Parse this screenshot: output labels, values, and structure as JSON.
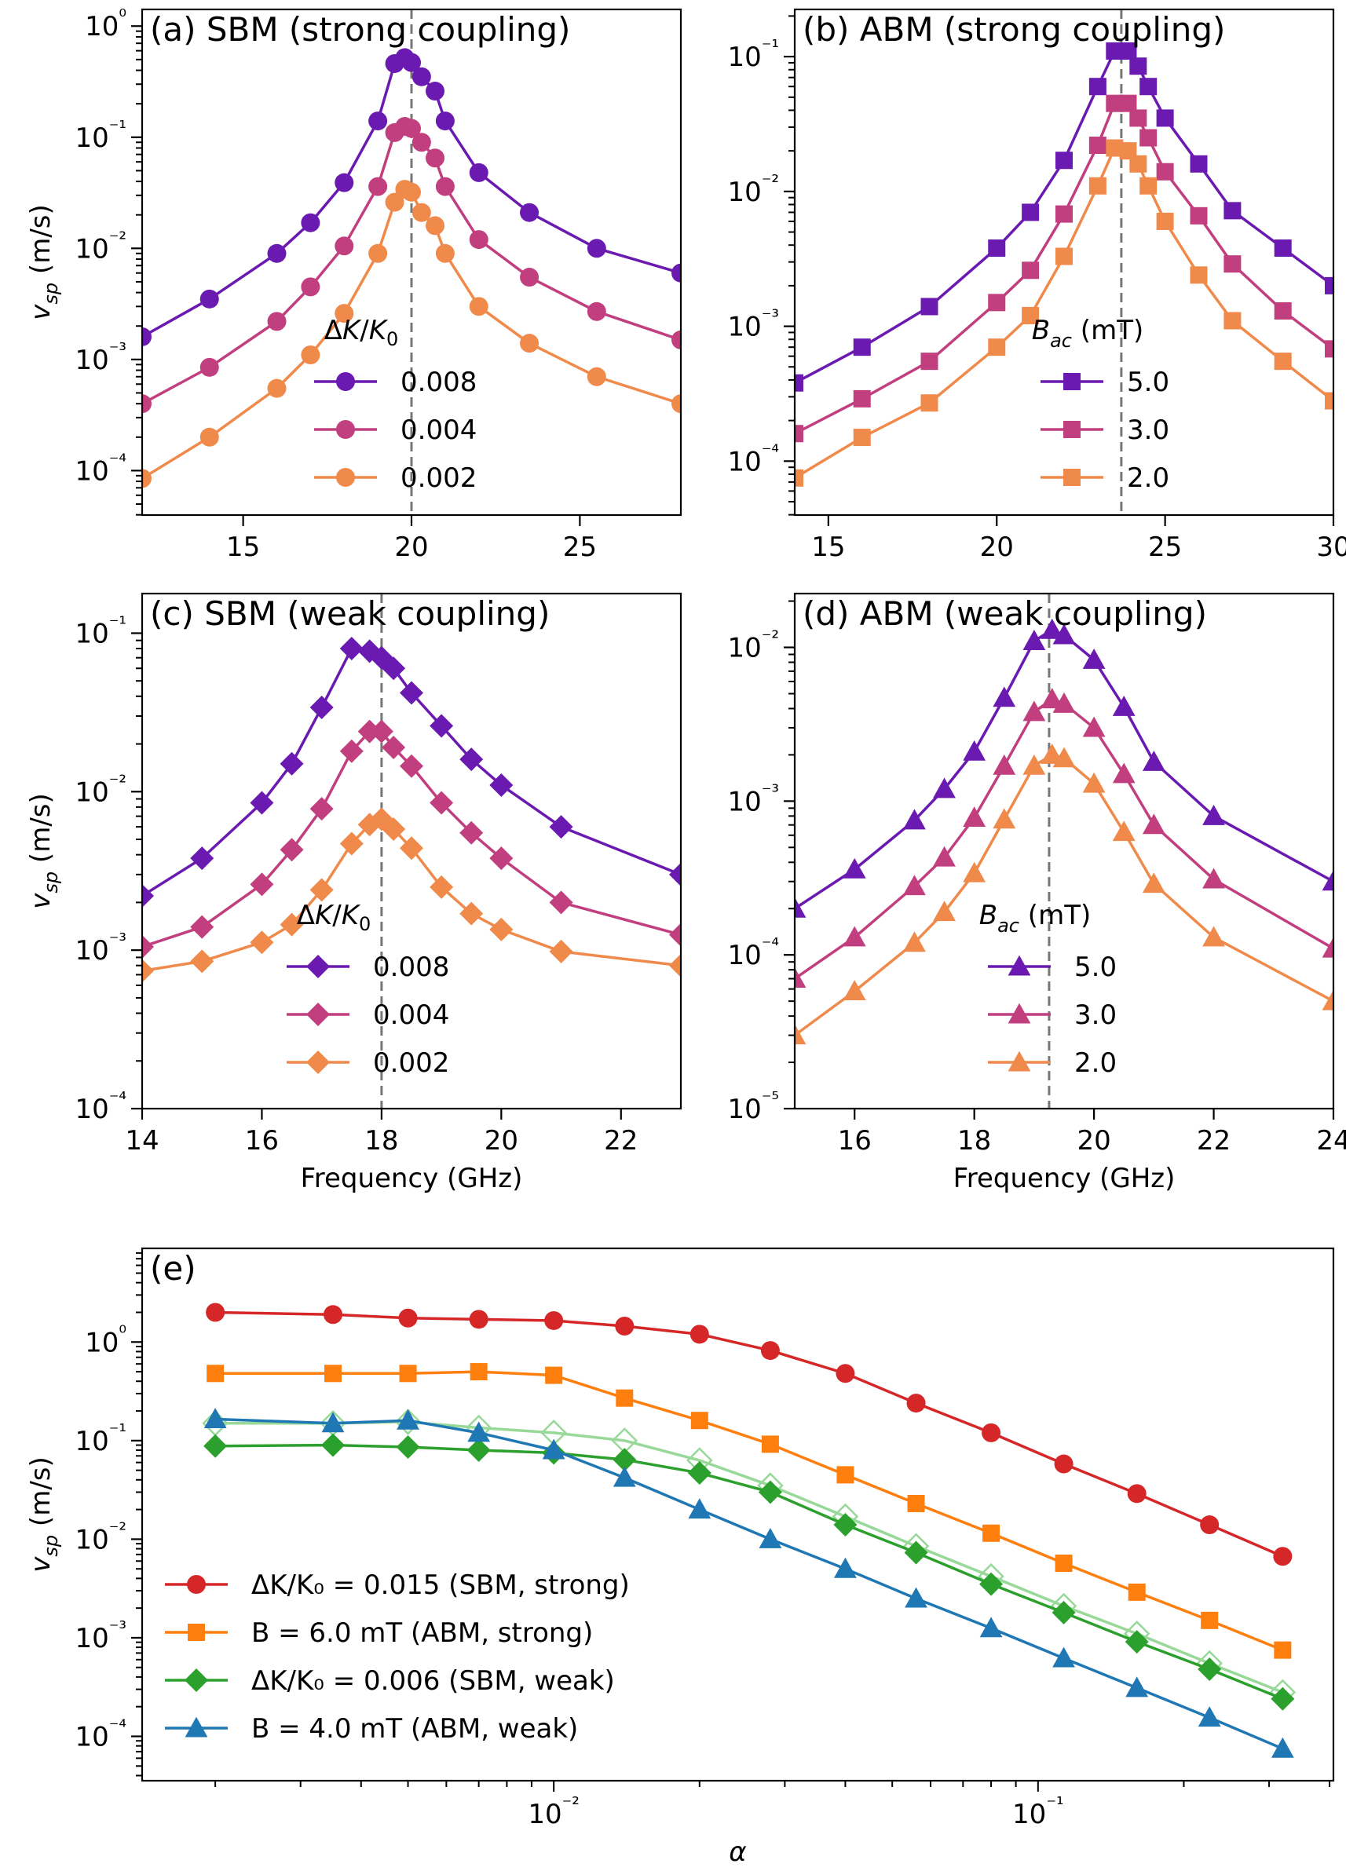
{
  "figure": {
    "label": "Five-panel spin-pumping velocity figure"
  },
  "chart_data": [
    {
      "id": "a",
      "type": "line",
      "title": "(a) SBM (strong coupling)",
      "xlabel": "",
      "ylabel": "v_sp (m/s)",
      "xlim": [
        12,
        28
      ],
      "ylim_log10": [
        -4.4,
        0.15
      ],
      "xticks": [
        15,
        20,
        25
      ],
      "yticks_exp": [
        -4,
        -3,
        -2,
        -1,
        0
      ],
      "vline": 20,
      "marker": "circle",
      "legend_title": "ΔK/K₀",
      "x": [
        12,
        14,
        16,
        17,
        18,
        19,
        19.5,
        19.8,
        20,
        20.3,
        20.7,
        21,
        22,
        23.5,
        25.5,
        28
      ],
      "series": [
        {
          "name": "0.008",
          "color": "#6a1ab0",
          "values": [
            0.0016,
            0.0035,
            0.009,
            0.017,
            0.039,
            0.14,
            0.46,
            0.52,
            0.47,
            0.35,
            0.26,
            0.14,
            0.048,
            0.021,
            0.01,
            0.006
          ]
        },
        {
          "name": "0.004",
          "color": "#c13e7f",
          "values": [
            0.0004,
            0.00085,
            0.0022,
            0.0045,
            0.0105,
            0.036,
            0.11,
            0.125,
            0.12,
            0.09,
            0.065,
            0.036,
            0.012,
            0.0055,
            0.0027,
            0.0015
          ]
        },
        {
          "name": "0.002",
          "color": "#f08a4b",
          "values": [
            8.5e-05,
            0.0002,
            0.00055,
            0.0011,
            0.0026,
            0.009,
            0.026,
            0.034,
            0.032,
            0.021,
            0.016,
            0.009,
            0.003,
            0.0014,
            0.0007,
            0.0004
          ]
        }
      ]
    },
    {
      "id": "b",
      "type": "line",
      "title": "(b) ABM (strong coupling)",
      "xlabel": "",
      "ylabel": "",
      "xlim": [
        14,
        30
      ],
      "ylim_log10": [
        -4.4,
        -0.65
      ],
      "xticks": [
        15,
        20,
        25,
        30
      ],
      "yticks_exp": [
        -4,
        -3,
        -2,
        -1
      ],
      "vline": 23.7,
      "marker": "square",
      "legend_title": "B_ac (mT)",
      "x": [
        14,
        16,
        18,
        20,
        21,
        22,
        23,
        23.5,
        23.9,
        24.2,
        24.5,
        25,
        26,
        27,
        28.5,
        30
      ],
      "series": [
        {
          "name": "5.0",
          "color": "#6a1ab0",
          "values": [
            0.00038,
            0.0007,
            0.0014,
            0.0038,
            0.007,
            0.017,
            0.06,
            0.11,
            0.11,
            0.085,
            0.06,
            0.035,
            0.016,
            0.0072,
            0.0038,
            0.002
          ]
        },
        {
          "name": "3.0",
          "color": "#c13e7f",
          "values": [
            0.00016,
            0.00029,
            0.00055,
            0.0015,
            0.0026,
            0.0068,
            0.022,
            0.045,
            0.045,
            0.035,
            0.025,
            0.014,
            0.0066,
            0.0029,
            0.0013,
            0.00068
          ]
        },
        {
          "name": "2.0",
          "color": "#f08a4b",
          "values": [
            7.5e-05,
            0.00015,
            0.00027,
            0.0007,
            0.0012,
            0.0033,
            0.011,
            0.021,
            0.02,
            0.016,
            0.011,
            0.006,
            0.0024,
            0.0011,
            0.00055,
            0.00028
          ]
        }
      ]
    },
    {
      "id": "c",
      "type": "line",
      "title": "(c) SBM (weak coupling)",
      "xlabel": "Frequency (GHz)",
      "ylabel": "v_sp (m/s)",
      "xlim": [
        14,
        23
      ],
      "ylim_log10": [
        -4,
        -0.75
      ],
      "xticks": [
        14,
        16,
        18,
        20,
        22
      ],
      "yticks_exp": [
        -4,
        -3,
        -2,
        -1
      ],
      "vline": 18,
      "marker": "diamond",
      "legend_title": "ΔK/K₀",
      "x": [
        14,
        15,
        16,
        16.5,
        17,
        17.5,
        17.8,
        18,
        18.2,
        18.5,
        19,
        19.5,
        20,
        21,
        23
      ],
      "series": [
        {
          "name": "0.008",
          "color": "#6a1ab0",
          "values": [
            0.0022,
            0.0038,
            0.0085,
            0.015,
            0.034,
            0.08,
            0.077,
            0.07,
            0.06,
            0.042,
            0.026,
            0.016,
            0.011,
            0.006,
            0.003
          ]
        },
        {
          "name": "0.004",
          "color": "#c13e7f",
          "values": [
            0.00105,
            0.0014,
            0.0026,
            0.0043,
            0.0078,
            0.018,
            0.024,
            0.024,
            0.019,
            0.0145,
            0.0085,
            0.0055,
            0.0038,
            0.002,
            0.00125
          ]
        },
        {
          "name": "0.002",
          "color": "#f08a4b",
          "values": [
            0.00074,
            0.00085,
            0.00112,
            0.00145,
            0.0024,
            0.0047,
            0.0062,
            0.0067,
            0.0058,
            0.0044,
            0.0025,
            0.0017,
            0.00135,
            0.00098,
            0.0008
          ]
        }
      ]
    },
    {
      "id": "d",
      "type": "line",
      "title": "(d) ABM (weak coupling)",
      "xlabel": "Frequency (GHz)",
      "ylabel": "",
      "xlim": [
        15,
        24
      ],
      "ylim_log10": [
        -5,
        -1.65
      ],
      "xticks": [
        16,
        18,
        20,
        22,
        24
      ],
      "yticks_exp": [
        -5,
        -4,
        -3,
        -2
      ],
      "vline": 19.25,
      "marker": "triangle",
      "legend_title": "B_ac (mT)",
      "x": [
        15,
        16,
        17,
        17.5,
        18,
        18.5,
        19,
        19.3,
        19.5,
        20,
        20.5,
        21,
        22,
        24
      ],
      "series": [
        {
          "name": "5.0",
          "color": "#6a1ab0",
          "values": [
            0.0002,
            0.00036,
            0.00075,
            0.0012,
            0.0021,
            0.0047,
            0.011,
            0.013,
            0.012,
            0.0083,
            0.0041,
            0.0018,
            0.0008,
            0.0003
          ]
        },
        {
          "name": "3.0",
          "color": "#c13e7f",
          "values": [
            7e-05,
            0.00013,
            0.00028,
            0.00043,
            0.00078,
            0.0017,
            0.0038,
            0.0046,
            0.0043,
            0.003,
            0.0015,
            0.0007,
            0.00031,
            0.00011
          ]
        },
        {
          "name": "2.0",
          "color": "#f08a4b",
          "values": [
            3e-05,
            5.8e-05,
            0.00012,
            0.00019,
            0.00034,
            0.00076,
            0.0017,
            0.002,
            0.0019,
            0.0013,
            0.00063,
            0.00029,
            0.00013,
            5e-05
          ]
        }
      ]
    },
    {
      "id": "e",
      "type": "line",
      "title": "(e)",
      "xlabel": "α",
      "ylabel": "v_sp (m/s)",
      "xscale": "log",
      "xlim_log10": [
        -2.85,
        -0.39
      ],
      "ylim_log10": [
        -4.45,
        0.95
      ],
      "xticks_exp": [
        -2,
        -1
      ],
      "yticks_exp": [
        -4,
        -3,
        -2,
        -1,
        0
      ],
      "x": [
        0.002,
        0.0035,
        0.005,
        0.007,
        0.01,
        0.014,
        0.02,
        0.028,
        0.04,
        0.056,
        0.08,
        0.113,
        0.16,
        0.226,
        0.32
      ],
      "series": [
        {
          "name": "ΔK/K₀ = 0.015 (SBM, strong)",
          "color": "#d62728",
          "marker": "circle",
          "values": [
            2.0,
            1.9,
            1.75,
            1.7,
            1.65,
            1.45,
            1.2,
            0.82,
            0.48,
            0.24,
            0.12,
            0.058,
            0.029,
            0.014,
            0.0067
          ]
        },
        {
          "name": "B = 6.0 mT  (ABM, strong)",
          "color": "#ff7f0e",
          "marker": "square",
          "values": [
            0.48,
            0.48,
            0.48,
            0.5,
            0.46,
            0.27,
            0.16,
            0.092,
            0.045,
            0.023,
            0.0115,
            0.0057,
            0.0029,
            0.0015,
            0.00075
          ]
        },
        {
          "name": "ΔK/K₀ = 0.006 (SBM, weak)",
          "color": "#2ca02c",
          "marker": "diamond",
          "values": [
            0.088,
            0.09,
            0.086,
            0.08,
            0.075,
            0.064,
            0.047,
            0.03,
            0.014,
            0.0073,
            0.0035,
            0.0018,
            0.00091,
            0.00048,
            0.00024
          ]
        },
        {
          "name": "B = 4.0 mT (ABM, weak)",
          "color": "#1f77b4",
          "marker": "triangle",
          "values": [
            0.165,
            0.15,
            0.16,
            0.12,
            0.08,
            0.042,
            0.02,
            0.01,
            0.005,
            0.0025,
            0.00125,
            0.00062,
            0.00031,
            0.000155,
            7.5e-05
          ]
        },
        {
          "name": "",
          "color": "#98d898",
          "marker": "diamond-open",
          "legend": false,
          "values": [
            0.15,
            0.15,
            0.155,
            0.135,
            0.12,
            0.1,
            0.063,
            0.035,
            0.017,
            0.0085,
            0.0042,
            0.0021,
            0.0011,
            0.00055,
            0.00028
          ]
        }
      ]
    }
  ]
}
